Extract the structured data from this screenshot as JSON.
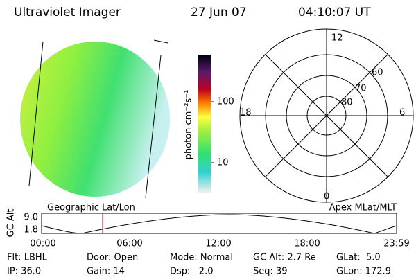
{
  "header": {
    "title": "Ultraviolet Imager",
    "date": "27 Jun 07",
    "time": "04:10:07 UT"
  },
  "colorbar": {
    "label": "photon cm⁻²s⁻¹",
    "ticks": [
      "100",
      "10"
    ]
  },
  "polar": {
    "mlt": [
      "12",
      "18",
      "6",
      "0"
    ],
    "mlat": [
      "60",
      "70",
      "80"
    ]
  },
  "orbit": {
    "left_title": "Geographic Lat/Lon",
    "right_title": "Apex MLat/MLT",
    "y_label": "GC Alt",
    "yticks": [
      "9.0",
      "1.8"
    ],
    "xticks": [
      "00:00",
      "06:00",
      "12:00",
      "18:00",
      "23:59"
    ]
  },
  "footer": {
    "rows": [
      [
        "Flt: LBHL",
        "Door: Open",
        "Mode: Normal",
        "GC Alt: 2.7 Re",
        "GLat:  5.0"
      ],
      [
        "IP: 36.0",
        "Gain: 14",
        "Dsp:   2.0",
        "Seq: 39",
        "GLon: 172.9"
      ]
    ]
  }
}
